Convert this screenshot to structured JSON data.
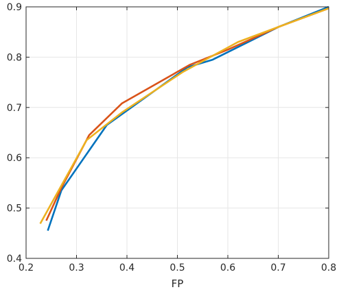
{
  "chart_data": {
    "type": "line",
    "title": "",
    "xlabel": "FP",
    "ylabel": "",
    "xlim": [
      0.2,
      0.8
    ],
    "ylim": [
      0.4,
      0.9
    ],
    "xticks": [
      0.2,
      0.3,
      0.4,
      0.5,
      0.6,
      0.7,
      0.8
    ],
    "yticks": [
      0.4,
      0.5,
      0.6,
      0.7,
      0.8,
      0.9
    ],
    "xtick_labels": [
      "0.2",
      "0.3",
      "0.4",
      "0.5",
      "0.6",
      "0.7",
      "0.8"
    ],
    "ytick_labels": [
      "0.4",
      "0.5",
      "0.6",
      "0.7",
      "0.8",
      "0.9"
    ],
    "grid": true,
    "legend": "none",
    "series": [
      {
        "color": "#0072BD",
        "x": [
          0.243,
          0.27,
          0.36,
          0.52,
          0.57,
          0.7,
          0.8
        ],
        "y": [
          0.455,
          0.535,
          0.665,
          0.78,
          0.795,
          0.86,
          0.9
        ]
      },
      {
        "color": "#D95319",
        "x": [
          0.24,
          0.27,
          0.325,
          0.39,
          0.525,
          0.6,
          0.7,
          0.8
        ],
        "y": [
          0.475,
          0.54,
          0.645,
          0.708,
          0.785,
          0.815,
          0.86,
          0.897
        ]
      },
      {
        "color": "#EDB120",
        "x": [
          0.228,
          0.32,
          0.39,
          0.51,
          0.62,
          0.7,
          0.8
        ],
        "y": [
          0.469,
          0.635,
          0.69,
          0.77,
          0.83,
          0.86,
          0.897
        ]
      }
    ]
  }
}
